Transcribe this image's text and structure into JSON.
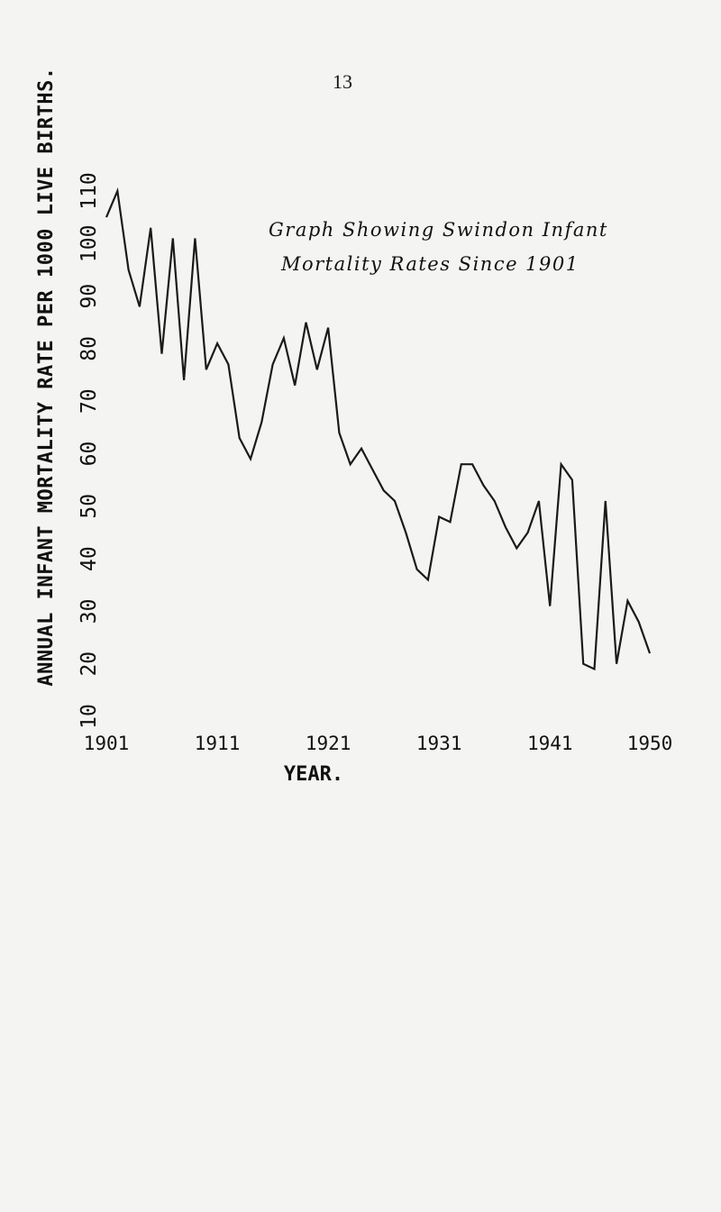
{
  "page_number": "13",
  "chart_data": {
    "type": "line",
    "title": "Graph Showing Swindon Infant",
    "subtitle": "Mortality Rates Since 1901",
    "ylabel": "ANNUAL INFANT MORTALITY RATE PER 1000 LIVE BIRTHS.",
    "xlabel": "YEAR.",
    "ylim": [
      10,
      110
    ],
    "xlim": [
      1901,
      1950
    ],
    "y_ticks": [
      "10",
      "20",
      "30",
      "40",
      "50",
      "60",
      "70",
      "80",
      "90",
      "100",
      "110"
    ],
    "x_ticks": [
      "1901",
      "1911",
      "1921",
      "1931",
      "1941",
      "1950"
    ],
    "grid": false,
    "series": [
      {
        "x": [
          1901,
          1902,
          1903,
          1904,
          1905,
          1906,
          1907,
          1908,
          1909,
          1910,
          1911,
          1912,
          1913,
          1914,
          1915,
          1916,
          1917,
          1918,
          1919,
          1920,
          1921,
          1922,
          1923,
          1924,
          1925,
          1926,
          1927,
          1928,
          1929,
          1930,
          1931,
          1932,
          1933,
          1934,
          1935,
          1936,
          1937,
          1938,
          1939,
          1940,
          1941,
          1942,
          1943,
          1944,
          1945,
          1946,
          1947,
          1948,
          1949,
          1950
        ],
        "values": [
          105,
          110,
          95,
          88,
          103,
          79,
          101,
          74,
          101,
          76,
          81,
          77,
          63,
          59,
          66,
          77,
          82,
          73,
          85,
          76,
          84,
          64,
          58,
          61,
          57,
          53,
          51,
          45,
          38,
          36,
          48,
          47,
          58,
          58,
          54,
          51,
          46,
          42,
          45,
          51,
          31,
          58,
          55,
          20,
          19,
          51,
          20,
          32,
          28,
          22
        ]
      }
    ]
  }
}
